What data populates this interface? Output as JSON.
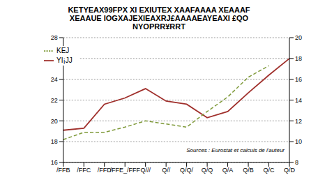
{
  "chart_data": {
    "type": "line",
    "title": "KETYEAX99FPX XI EXIUTEX XAAFAAAA XEAAAF XEAAUE IOGXAJEXIEAXRJ£AAAAEAYEAXI £QO NYOPRR¥RRT",
    "annotation": "Sources : Eurostat et calculs de l'auteur",
    "categories": [
      "/FFB",
      "/FFC",
      "/FFD",
      "/FFE_/FFF",
      "Q///",
      "Q//",
      "Q/Q/",
      "Q/Q",
      "Q/A",
      "Q/B",
      "Q/C",
      "Q/D"
    ],
    "series": [
      {
        "name": "YI¡JJ",
        "color": "#a0302c",
        "line_style": "solid",
        "values": [
          19.1,
          19.3,
          21.6,
          22.2,
          23.1,
          21.9,
          21.6,
          20.3,
          20.9,
          22.7,
          24.4,
          26.0
        ]
      },
      {
        "name": "KEJ",
        "color": "#7f9a3a",
        "line_style": "dashed",
        "axis": "y2",
        "values": [
          10.2,
          10.9,
          10.9,
          11.4,
          12.0,
          11.7,
          11.4,
          12.9,
          14.3,
          16.2,
          17.3,
          null
        ]
      }
    ],
    "ylim": [
      16,
      28
    ],
    "yticks": [
      16,
      18,
      20,
      22,
      24,
      26,
      28
    ],
    "y2lim": [
      8,
      20
    ],
    "y2ticks": [
      8,
      10,
      12,
      14,
      16,
      18,
      20
    ],
    "grid": true,
    "legend": "upper left"
  }
}
